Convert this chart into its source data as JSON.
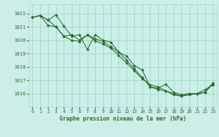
{
  "title": "Graphe pression niveau de la mer (hPa)",
  "bg_color": "#cceee8",
  "grid_color": "#99ddcc",
  "line_color": "#2d6a2d",
  "marker_color": "#2d6a2d",
  "xlim": [
    -0.5,
    23.5
  ],
  "ylim": [
    1015.0,
    1022.7
  ],
  "yticks": [
    1016,
    1017,
    1018,
    1019,
    1020,
    1021,
    1022
  ],
  "xticks": [
    0,
    1,
    2,
    3,
    4,
    5,
    6,
    7,
    8,
    9,
    10,
    11,
    12,
    13,
    14,
    15,
    16,
    17,
    18,
    19,
    20,
    21,
    22,
    23
  ],
  "series": [
    [
      1021.7,
      1021.85,
      1021.5,
      1021.9,
      1021.05,
      1020.3,
      1020.4,
      1019.3,
      1020.4,
      1020.0,
      1019.85,
      1019.1,
      1018.8,
      1018.1,
      1017.75,
      1016.5,
      1016.4,
      1016.7,
      1016.1,
      1015.9,
      1016.0,
      1015.95,
      1016.1,
      1016.7
    ],
    [
      1021.7,
      1021.85,
      1021.1,
      1021.0,
      1020.3,
      1020.4,
      1020.0,
      1020.4,
      1019.95,
      1019.7,
      1019.4,
      1018.85,
      1018.3,
      1017.7,
      1017.1,
      1016.65,
      1016.5,
      1016.2,
      1016.0,
      1015.8,
      1016.0,
      1016.0,
      1016.1,
      1016.8
    ],
    [
      1021.7,
      1021.85,
      1021.5,
      1021.0,
      1020.3,
      1020.0,
      1019.9,
      1020.4,
      1020.1,
      1019.9,
      1019.5,
      1019.1,
      1018.5,
      1017.85,
      1017.2,
      1016.5,
      1016.3,
      1016.2,
      1015.9,
      1015.8,
      1015.9,
      1016.0,
      1016.3,
      1016.65
    ]
  ]
}
